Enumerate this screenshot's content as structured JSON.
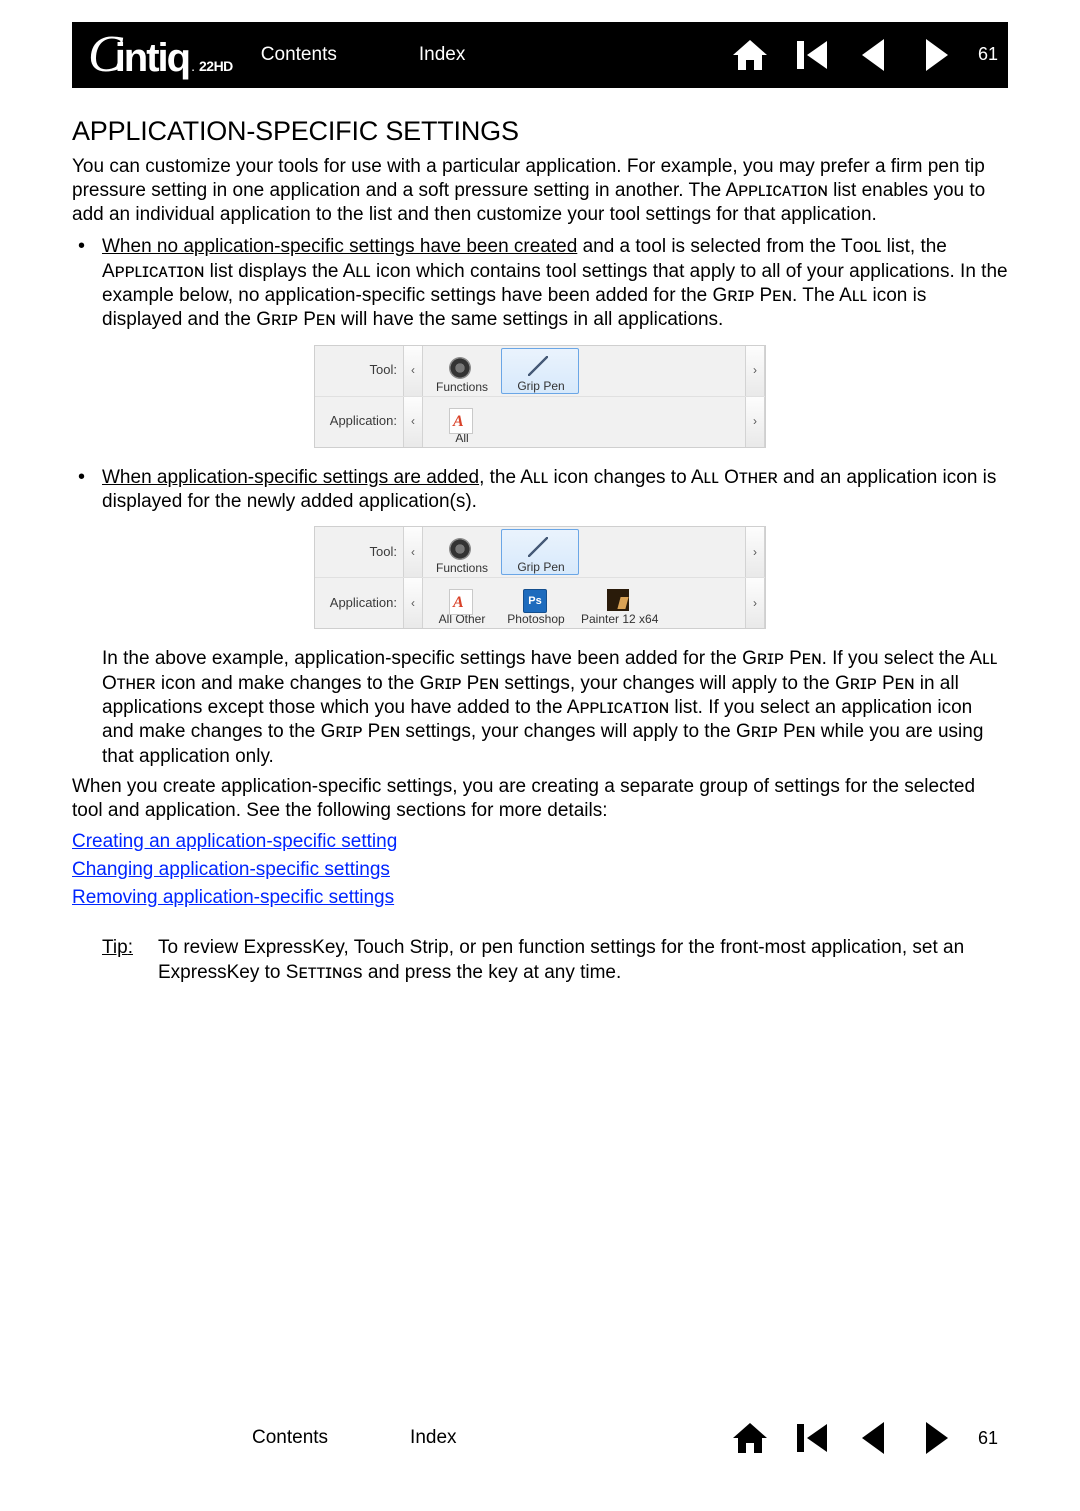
{
  "brand": {
    "name": "Cintiq",
    "model": "22HD"
  },
  "nav": {
    "contents": "Contents",
    "index": "Index",
    "page": "61"
  },
  "title": "APPLICATION-SPECIFIC SETTINGS",
  "intro": "You can customize your tools for use with a particular application.  For example, you may prefer a firm pen tip pressure setting in one application and a soft pressure setting in another.  The Aᴘᴘʟɪᴄᴀᴛɪᴏɴ list enables you to add an individual application to the list and then customize your tool settings for that application.",
  "bullet1_underlined": "When no application-specific settings have been created",
  "bullet1_rest1": " and a tool is selected from the Tᴏᴏʟ list, the Aᴘᴘʟɪᴄᴀᴛɪᴏɴ list displays the Aʟʟ icon which contains tool settings that apply to all of your applications.  In the example below, no application-specific settings have been added for the Gʀɪᴘ Pᴇɴ.  The Aʟʟ icon is displayed and the Gʀɪᴘ Pᴇɴ will have the same settings in all applications.",
  "bullet2_underlined": "When application-specific settings are added",
  "bullet2_rest": ", the Aʟʟ icon changes to Aʟʟ Oᴛʜᴇʀ and an application icon is displayed for the newly added application(s).",
  "panel_labels": {
    "tool": "Tool:",
    "application": "Application:"
  },
  "panel1": {
    "tools": [
      {
        "label": "Functions",
        "icon": "gear"
      },
      {
        "label": "Grip Pen",
        "icon": "pen",
        "selected": true
      }
    ],
    "apps": [
      {
        "label": "All",
        "icon": "docA"
      }
    ]
  },
  "panel2": {
    "tools": [
      {
        "label": "Functions",
        "icon": "gear"
      },
      {
        "label": "Grip Pen",
        "icon": "pen",
        "selected": true
      }
    ],
    "apps": [
      {
        "label": "All Other",
        "icon": "docA"
      },
      {
        "label": "Photoshop",
        "icon": "ps"
      },
      {
        "label": "Painter 12 x64",
        "icon": "painter"
      }
    ]
  },
  "after_panel2": "In the above example, application-specific settings have been added for the Gʀɪᴘ Pᴇɴ.  If you select the Aʟʟ Oᴛʜᴇʀ icon and make changes to the Gʀɪᴘ Pᴇɴ settings, your changes will apply to the Gʀɪᴘ Pᴇɴ in all applications except those which you have added to the Aᴘᴘʟɪᴄᴀᴛɪᴏɴ list.  If you select an application icon and make changes to the Gʀɪᴘ Pᴇɴ settings, your changes will apply to the Gʀɪᴘ Pᴇɴ while you are using that application only.",
  "para_create": "When you create application-specific settings, you are creating a separate group of settings for the selected tool and application.  See the following sections for more details:",
  "links": {
    "create": "Creating an application-specific setting",
    "change": "Changing application-specific settings",
    "remove": "Removing application-specific settings"
  },
  "tip_label": "Tip",
  "tip_body": "To review ExpressKey, Touch Strip, or pen function settings for the front-most application, set an ExpressKey to Sᴇᴛᴛɪɴɢs and press the key at any time."
}
